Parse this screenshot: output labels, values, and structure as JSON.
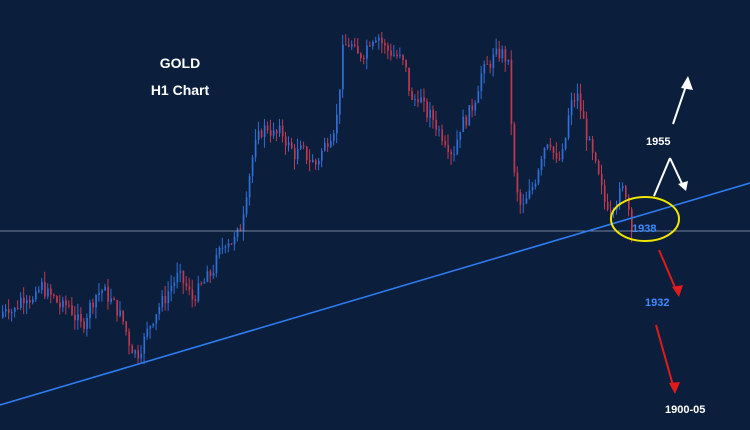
{
  "chart_data": {
    "type": "candlestick",
    "title": "GOLD",
    "subtitle": "H1 Chart",
    "colors": {
      "background": "#0b1e3b",
      "bull": "#2f6fd6",
      "bear": "#c0394f",
      "trendline": "#2d7cf0",
      "level_line": "#8a9bb3",
      "ellipse": "#f2e600",
      "up_arrow": "#ffffff",
      "down_arrow": "#e01b1b"
    },
    "levels": [
      {
        "label": "1955",
        "color": "#ffffff"
      },
      {
        "label": "1938",
        "color": "#3d8bff"
      },
      {
        "label": "1932",
        "color": "#3d8bff"
      },
      {
        "label": "1900-05",
        "color": "#ffffff"
      }
    ],
    "price_path": [
      1922,
      1925,
      1923,
      1926,
      1927,
      1925,
      1929,
      1927,
      1926,
      1924,
      1925,
      1922,
      1920,
      1924,
      1927,
      1928,
      1926,
      1924,
      1921,
      1916,
      1914,
      1917,
      1921,
      1924,
      1926,
      1929,
      1931,
      1929,
      1926,
      1928,
      1930,
      1932,
      1936,
      1939,
      1938,
      1941,
      1950,
      1958,
      1962,
      1963,
      1961,
      1962,
      1959,
      1957,
      1958,
      1956,
      1955,
      1958,
      1961,
      1964,
      1980,
      1981,
      1978,
      1979,
      1982,
      1983,
      1980,
      1979,
      1978,
      1976,
      1968,
      1970,
      1966,
      1965,
      1962,
      1960,
      1957,
      1963,
      1965,
      1968,
      1974,
      1976,
      1978,
      1979,
      1977,
      1950,
      1945,
      1948,
      1952,
      1958,
      1961,
      1955,
      1957,
      1967,
      1970,
      1964,
      1958,
      1953,
      1947,
      1946,
      1948,
      1950,
      1942
    ]
  }
}
